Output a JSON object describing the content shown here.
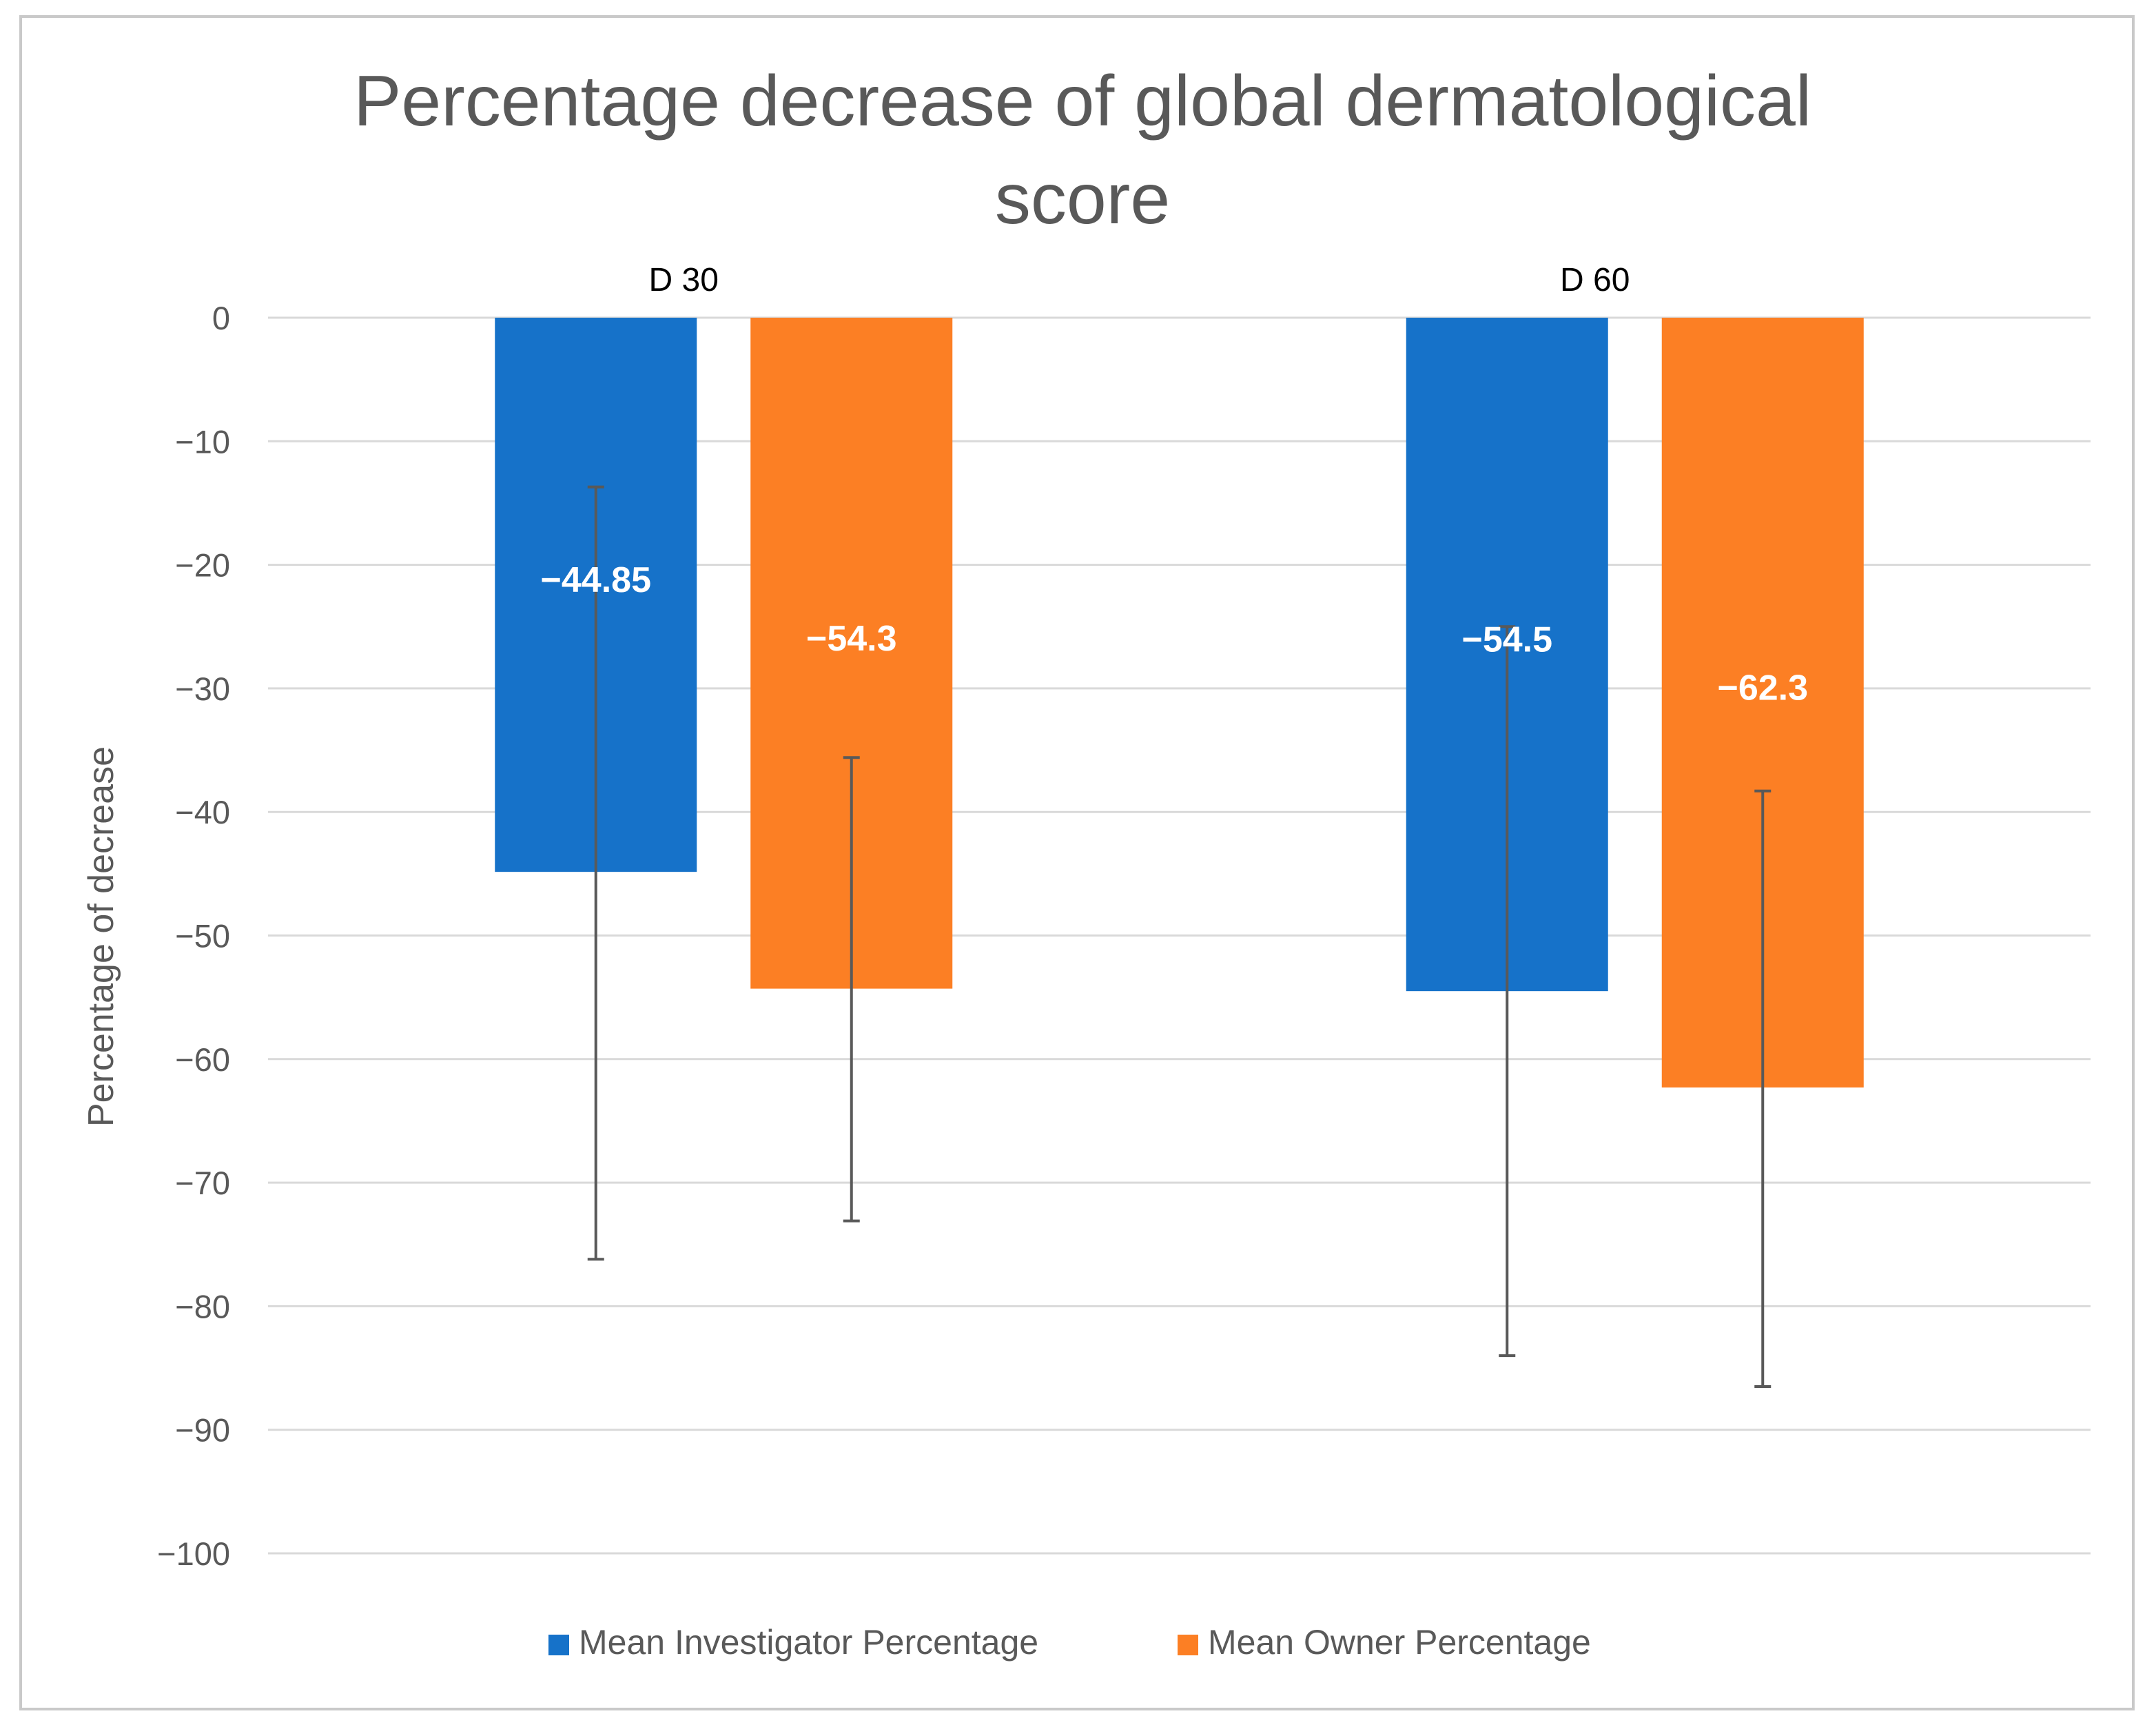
{
  "chart_data": {
    "type": "bar",
    "title_lines": [
      "Percentage decrease of global dermatological",
      "score"
    ],
    "ylabel": "Percentage of decrease",
    "xlabel": "",
    "ylim": [
      -100,
      0
    ],
    "yticks": [
      0,
      -10,
      -20,
      -30,
      -40,
      -50,
      -60,
      -70,
      -80,
      -90,
      -100
    ],
    "ytick_labels": [
      "0",
      "−10",
      "−20",
      "−30",
      "−40",
      "−50",
      "−60",
      "−70",
      "−80",
      "−90",
      "−100"
    ],
    "categories": [
      "D 30",
      "D 60"
    ],
    "grid": true,
    "legend_position": "bottom",
    "series": [
      {
        "name": "Mean Investigator Percentage",
        "color": "#1672c9",
        "values": [
          -44.85,
          -54.5
        ],
        "labels": [
          "−44.85",
          "−54.5"
        ],
        "error_low": [
          -76.2,
          -84.0
        ],
        "error_high": [
          -13.7,
          -25.0
        ]
      },
      {
        "name": "Mean Owner Percentage",
        "color": "#fc7f24",
        "values": [
          -54.3,
          -62.3
        ],
        "labels": [
          "−54.3",
          "−62.3"
        ],
        "error_low": [
          -73.1,
          -86.5
        ],
        "error_high": [
          -35.6,
          -38.3
        ]
      }
    ],
    "colors": {
      "title": "#595959",
      "axis_text": "#595959",
      "category_text": "#000000",
      "gridline": "#d9d9d9",
      "error_bar": "#595959",
      "data_label": "#ffffff"
    }
  }
}
